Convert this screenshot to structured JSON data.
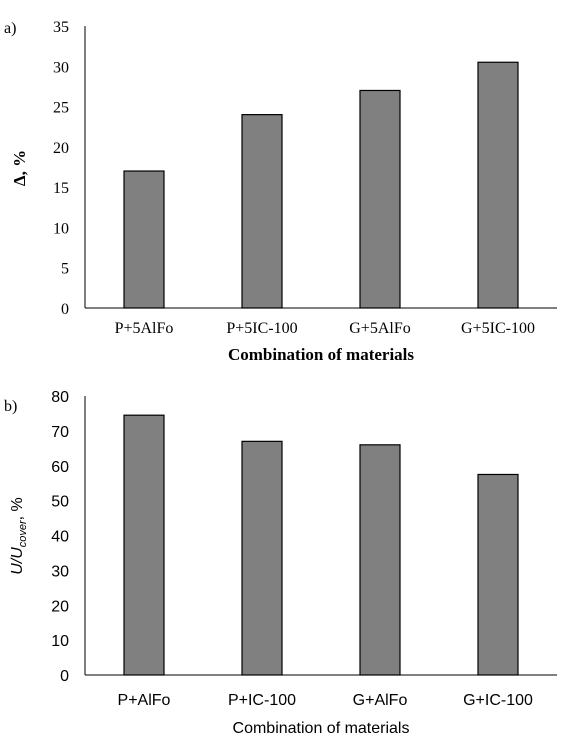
{
  "colors": {
    "bar_fill": "#808080",
    "bar_stroke": "#000000",
    "axis": "#000000",
    "background": "#ffffff"
  },
  "chart_data": [
    {
      "panel_label": "a)",
      "type": "bar",
      "categories": [
        "P+5AlFo",
        "P+5IC-100",
        "G+5AlFo",
        "G+5IC-100"
      ],
      "values": [
        17,
        24,
        27,
        30.5
      ],
      "title": "",
      "xlabel": "Combination of materials",
      "ylabel": "Δ, %",
      "ylim": [
        0,
        35
      ],
      "yticks": [
        "0",
        "5",
        "10",
        "15",
        "20",
        "25",
        "30",
        "35"
      ],
      "grid": false,
      "legend": "none"
    },
    {
      "panel_label": "b)",
      "type": "bar",
      "categories": [
        "P+AlFo",
        "P+IC-100",
        "G+AlFo",
        "G+IC-100"
      ],
      "values": [
        74.5,
        67,
        66,
        57.5
      ],
      "title": "",
      "xlabel": "Combination of materials",
      "ylabel": {
        "main": "U/U",
        "subscript": "cover",
        "suffix": ", %"
      },
      "ylim": [
        0,
        80
      ],
      "yticks": [
        "0",
        "10",
        "20",
        "30",
        "40",
        "50",
        "60",
        "70",
        "80"
      ],
      "grid": false,
      "legend": "none"
    }
  ]
}
